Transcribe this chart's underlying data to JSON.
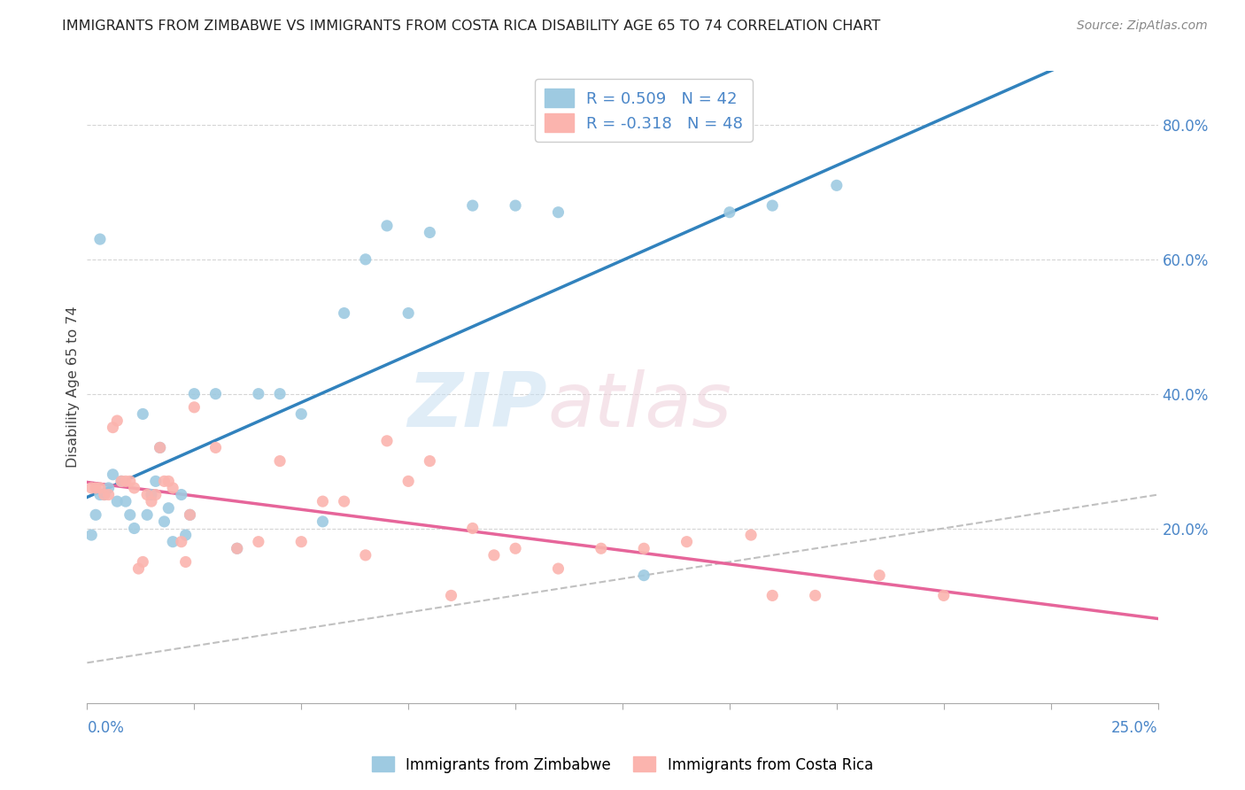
{
  "title": "IMMIGRANTS FROM ZIMBABWE VS IMMIGRANTS FROM COSTA RICA DISABILITY AGE 65 TO 74 CORRELATION CHART",
  "source": "Source: ZipAtlas.com",
  "ylabel": "Disability Age 65 to 74",
  "R_zimbabwe": 0.509,
  "N_zimbabwe": 42,
  "R_costarica": -0.318,
  "N_costarica": 48,
  "color_zimbabwe": "#9ecae1",
  "color_costarica": "#fbb4ae",
  "line_color_zimbabwe": "#3182bd",
  "line_color_costarica": "#e6659a",
  "diagonal_color": "#c0c0c0",
  "background_color": "#ffffff",
  "xlim": [
    0.0,
    0.25
  ],
  "ylim": [
    -0.06,
    0.88
  ],
  "right_yticks": [
    0.2,
    0.4,
    0.6,
    0.8
  ],
  "right_yticklabels": [
    "20.0%",
    "40.0%",
    "60.0%",
    "80.0%"
  ],
  "zimbabwe_x": [
    0.001,
    0.002,
    0.003,
    0.004,
    0.005,
    0.006,
    0.007,
    0.008,
    0.009,
    0.01,
    0.011,
    0.013,
    0.014,
    0.015,
    0.016,
    0.017,
    0.018,
    0.019,
    0.02,
    0.022,
    0.023,
    0.024,
    0.025,
    0.03,
    0.035,
    0.04,
    0.045,
    0.05,
    0.055,
    0.06,
    0.065,
    0.07,
    0.075,
    0.08,
    0.09,
    0.1,
    0.11,
    0.13,
    0.15,
    0.16,
    0.175,
    0.003
  ],
  "zimbabwe_y": [
    0.19,
    0.22,
    0.25,
    0.25,
    0.26,
    0.28,
    0.24,
    0.27,
    0.24,
    0.22,
    0.2,
    0.37,
    0.22,
    0.25,
    0.27,
    0.32,
    0.21,
    0.23,
    0.18,
    0.25,
    0.19,
    0.22,
    0.4,
    0.4,
    0.17,
    0.4,
    0.4,
    0.37,
    0.21,
    0.52,
    0.6,
    0.65,
    0.52,
    0.64,
    0.68,
    0.68,
    0.67,
    0.13,
    0.67,
    0.68,
    0.71,
    0.63
  ],
  "costarica_x": [
    0.001,
    0.002,
    0.003,
    0.004,
    0.005,
    0.006,
    0.007,
    0.008,
    0.009,
    0.01,
    0.011,
    0.012,
    0.013,
    0.014,
    0.015,
    0.016,
    0.017,
    0.018,
    0.019,
    0.02,
    0.022,
    0.023,
    0.024,
    0.025,
    0.03,
    0.035,
    0.04,
    0.045,
    0.05,
    0.055,
    0.06,
    0.065,
    0.07,
    0.075,
    0.08,
    0.085,
    0.09,
    0.095,
    0.1,
    0.11,
    0.12,
    0.13,
    0.14,
    0.155,
    0.16,
    0.17,
    0.185,
    0.2
  ],
  "costarica_y": [
    0.26,
    0.26,
    0.26,
    0.25,
    0.25,
    0.35,
    0.36,
    0.27,
    0.27,
    0.27,
    0.26,
    0.14,
    0.15,
    0.25,
    0.24,
    0.25,
    0.32,
    0.27,
    0.27,
    0.26,
    0.18,
    0.15,
    0.22,
    0.38,
    0.32,
    0.17,
    0.18,
    0.3,
    0.18,
    0.24,
    0.24,
    0.16,
    0.33,
    0.27,
    0.3,
    0.1,
    0.2,
    0.16,
    0.17,
    0.14,
    0.17,
    0.17,
    0.18,
    0.19,
    0.1,
    0.1,
    0.13,
    0.1
  ]
}
